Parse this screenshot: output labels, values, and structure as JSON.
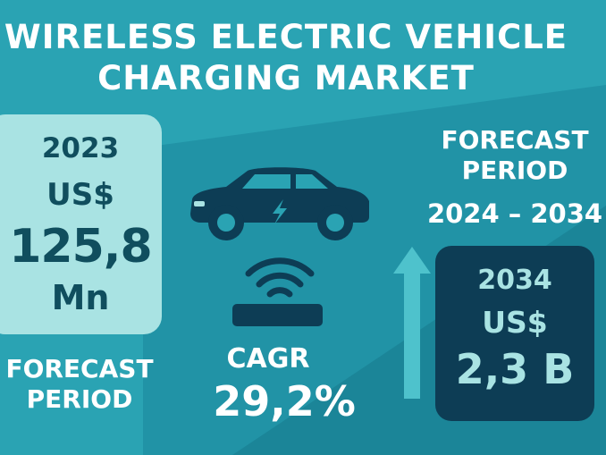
{
  "title": {
    "line1": "WIRELESS ELECTRIC VEHICLE",
    "line2": "CHARGING MARKET"
  },
  "left_box": {
    "year": "2023",
    "currency": "US$",
    "value": "125,8",
    "unit": "Mn"
  },
  "forecast_left": {
    "line1": "FORECAST",
    "line2": "PERIOD"
  },
  "cagr": {
    "label": "CAGR",
    "value": "29,2%"
  },
  "forecast_right": {
    "line1": "FORECAST",
    "line2": "PERIOD",
    "range": "2024 – 2034"
  },
  "right_box": {
    "year": "2034",
    "currency": "US$",
    "value": "2,3 B"
  },
  "icons": {
    "car": "electric-car-icon",
    "signal": "wireless-signal-icon",
    "pad": "charging-pad-icon",
    "arrow": "up-arrow-icon"
  },
  "colors": {
    "background": "#2aa3b3",
    "light_panel": "#a9e3e3",
    "dark_panel": "#0d3d55",
    "text_dark": "#104e5e",
    "text_light": "#ffffff"
  }
}
